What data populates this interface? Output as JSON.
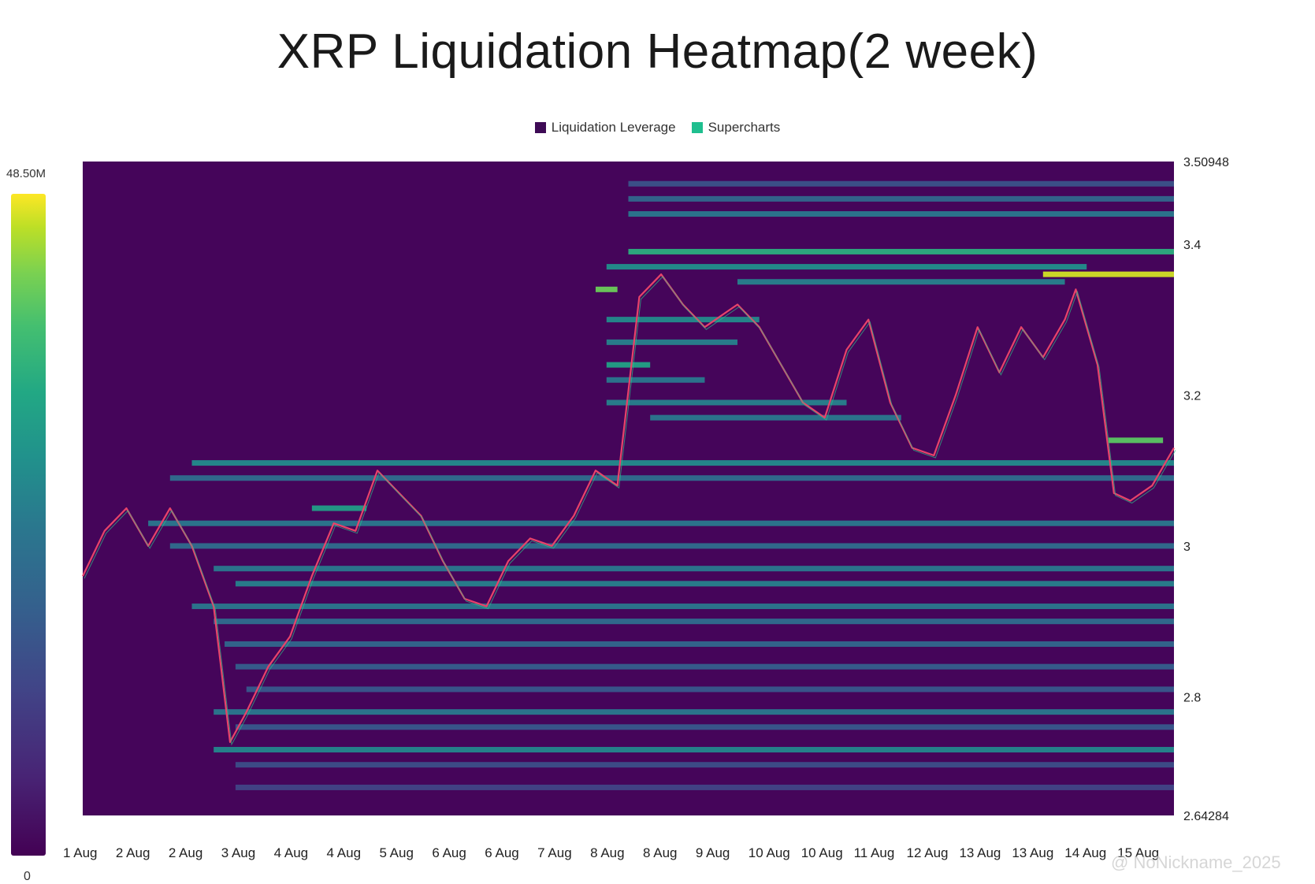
{
  "chart_data": {
    "type": "heatmap",
    "title": "XRP Liquidation Heatmap(2 week)",
    "legend": [
      {
        "label": "Liquidation Leverage",
        "color": "#3e0b55"
      },
      {
        "label": "Supercharts",
        "color": "#1fbf8f"
      }
    ],
    "colorbar": {
      "max_label": "48.50M",
      "min_label": "0",
      "max": 48.5,
      "min": 0,
      "unit": "M"
    },
    "y_axis": {
      "ylim": [
        2.64284,
        3.50948
      ],
      "ticks": [
        {
          "value": 3.50948,
          "label": "3.50948"
        },
        {
          "value": 3.4,
          "label": "3.4"
        },
        {
          "value": 3.2,
          "label": "3.2"
        },
        {
          "value": 3.0,
          "label": "3"
        },
        {
          "value": 2.8,
          "label": "2.8"
        },
        {
          "value": 2.64284,
          "label": "2.64284"
        }
      ]
    },
    "x_axis": {
      "labels": [
        "1 Aug",
        "2 Aug",
        "2 Aug",
        "3 Aug",
        "4 Aug",
        "4 Aug",
        "5 Aug",
        "6 Aug",
        "6 Aug",
        "7 Aug",
        "8 Aug",
        "8 Aug",
        "9 Aug",
        "10 Aug",
        "10 Aug",
        "11 Aug",
        "12 Aug",
        "13 Aug",
        "13 Aug",
        "14 Aug",
        "15 Aug"
      ]
    },
    "price_series": {
      "name": "XRP price",
      "x_fraction": [
        0.0,
        0.02,
        0.04,
        0.06,
        0.08,
        0.1,
        0.12,
        0.135,
        0.15,
        0.17,
        0.19,
        0.21,
        0.23,
        0.25,
        0.27,
        0.29,
        0.31,
        0.33,
        0.35,
        0.37,
        0.39,
        0.41,
        0.43,
        0.45,
        0.47,
        0.49,
        0.51,
        0.53,
        0.55,
        0.57,
        0.59,
        0.6,
        0.62,
        0.64,
        0.66,
        0.68,
        0.7,
        0.72,
        0.74,
        0.76,
        0.78,
        0.8,
        0.82,
        0.84,
        0.86,
        0.88,
        0.9,
        0.91,
        0.93,
        0.945,
        0.96,
        0.98,
        1.0
      ],
      "y": [
        2.96,
        3.02,
        3.05,
        3.0,
        3.05,
        3.0,
        2.92,
        2.74,
        2.78,
        2.84,
        2.88,
        2.96,
        3.03,
        3.02,
        3.1,
        3.07,
        3.04,
        2.98,
        2.93,
        2.92,
        2.98,
        3.01,
        3.0,
        3.04,
        3.1,
        3.08,
        3.33,
        3.36,
        3.32,
        3.29,
        3.31,
        3.32,
        3.29,
        3.24,
        3.19,
        3.17,
        3.26,
        3.3,
        3.19,
        3.13,
        3.12,
        3.2,
        3.29,
        3.23,
        3.29,
        3.25,
        3.3,
        3.34,
        3.24,
        3.07,
        3.06,
        3.08,
        3.13
      ]
    },
    "liquidation_bands": [
      {
        "price": 3.36,
        "intensity": 0.98,
        "x_start": 0.88,
        "x_end": 1.0
      },
      {
        "price": 3.39,
        "intensity": 0.78,
        "x_start": 0.5,
        "x_end": 1.0
      },
      {
        "price": 3.37,
        "intensity": 0.62,
        "x_start": 0.48,
        "x_end": 0.92
      },
      {
        "price": 3.35,
        "intensity": 0.55,
        "x_start": 0.6,
        "x_end": 0.9
      },
      {
        "price": 3.34,
        "intensity": 0.9,
        "x_start": 0.47,
        "x_end": 0.49
      },
      {
        "price": 3.44,
        "intensity": 0.5,
        "x_start": 0.5,
        "x_end": 1.0
      },
      {
        "price": 3.46,
        "intensity": 0.42,
        "x_start": 0.5,
        "x_end": 1.0
      },
      {
        "price": 3.48,
        "intensity": 0.32,
        "x_start": 0.5,
        "x_end": 1.0
      },
      {
        "price": 3.3,
        "intensity": 0.6,
        "x_start": 0.48,
        "x_end": 0.62
      },
      {
        "price": 3.27,
        "intensity": 0.55,
        "x_start": 0.48,
        "x_end": 0.6
      },
      {
        "price": 3.24,
        "intensity": 0.72,
        "x_start": 0.48,
        "x_end": 0.52
      },
      {
        "price": 3.22,
        "intensity": 0.5,
        "x_start": 0.48,
        "x_end": 0.57
      },
      {
        "price": 3.19,
        "intensity": 0.55,
        "x_start": 0.48,
        "x_end": 0.7
      },
      {
        "price": 3.17,
        "intensity": 0.5,
        "x_start": 0.52,
        "x_end": 0.75
      },
      {
        "price": 3.14,
        "intensity": 0.88,
        "x_start": 0.94,
        "x_end": 0.99
      },
      {
        "price": 3.11,
        "intensity": 0.6,
        "x_start": 0.1,
        "x_end": 1.0
      },
      {
        "price": 3.09,
        "intensity": 0.45,
        "x_start": 0.08,
        "x_end": 1.0
      },
      {
        "price": 3.05,
        "intensity": 0.7,
        "x_start": 0.21,
        "x_end": 0.26
      },
      {
        "price": 3.03,
        "intensity": 0.5,
        "x_start": 0.06,
        "x_end": 1.0
      },
      {
        "price": 3.0,
        "intensity": 0.45,
        "x_start": 0.08,
        "x_end": 1.0
      },
      {
        "price": 2.97,
        "intensity": 0.5,
        "x_start": 0.12,
        "x_end": 1.0
      },
      {
        "price": 2.95,
        "intensity": 0.55,
        "x_start": 0.14,
        "x_end": 1.0
      },
      {
        "price": 2.92,
        "intensity": 0.5,
        "x_start": 0.1,
        "x_end": 1.0
      },
      {
        "price": 2.9,
        "intensity": 0.45,
        "x_start": 0.12,
        "x_end": 1.0
      },
      {
        "price": 2.87,
        "intensity": 0.42,
        "x_start": 0.13,
        "x_end": 1.0
      },
      {
        "price": 2.84,
        "intensity": 0.38,
        "x_start": 0.14,
        "x_end": 1.0
      },
      {
        "price": 2.81,
        "intensity": 0.35,
        "x_start": 0.15,
        "x_end": 1.0
      },
      {
        "price": 2.78,
        "intensity": 0.5,
        "x_start": 0.12,
        "x_end": 1.0
      },
      {
        "price": 2.76,
        "intensity": 0.35,
        "x_start": 0.14,
        "x_end": 1.0
      },
      {
        "price": 2.73,
        "intensity": 0.58,
        "x_start": 0.12,
        "x_end": 1.0
      },
      {
        "price": 2.71,
        "intensity": 0.3,
        "x_start": 0.14,
        "x_end": 1.0
      },
      {
        "price": 2.68,
        "intensity": 0.25,
        "x_start": 0.14,
        "x_end": 1.0
      }
    ]
  },
  "watermark": "@ NoNickname_2025"
}
